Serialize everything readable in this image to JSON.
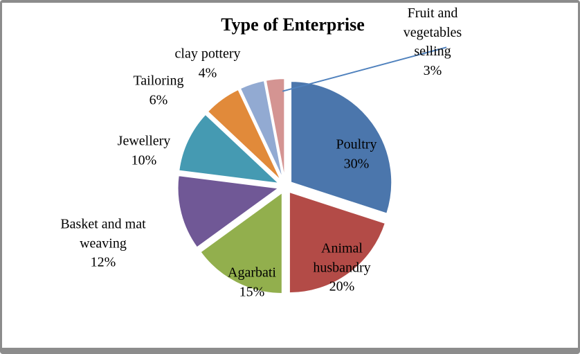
{
  "chart_data": {
    "type": "pie",
    "title": "Type of Enterprise",
    "categories": [
      "Poultry",
      "Animal husbandry",
      "Agarbati",
      "Basket and mat weaving",
      "Jewellery",
      "Tailoring",
      "clay pottery",
      "Fruit and vegetables selling"
    ],
    "values": [
      30,
      20,
      15,
      12,
      10,
      6,
      4,
      3
    ],
    "unit": "%",
    "series_colors": [
      "#4B76AC",
      "#B34B47",
      "#92AF4D",
      "#705896",
      "#459AB2",
      "#E18A3A",
      "#92AAD2",
      "#D49492"
    ],
    "style": "exploded",
    "start_angle_deg": 0,
    "direction": "clockwise",
    "legend": "none",
    "data_labels": "category name and percent",
    "leader_line_color": "#4F81BD",
    "slice_outline_color": "#FFFFFF",
    "frame_border_color": "#8C8C8C",
    "background_color": "#FFFFFF",
    "title_color": "#000000",
    "label_text_color": "#000000"
  }
}
